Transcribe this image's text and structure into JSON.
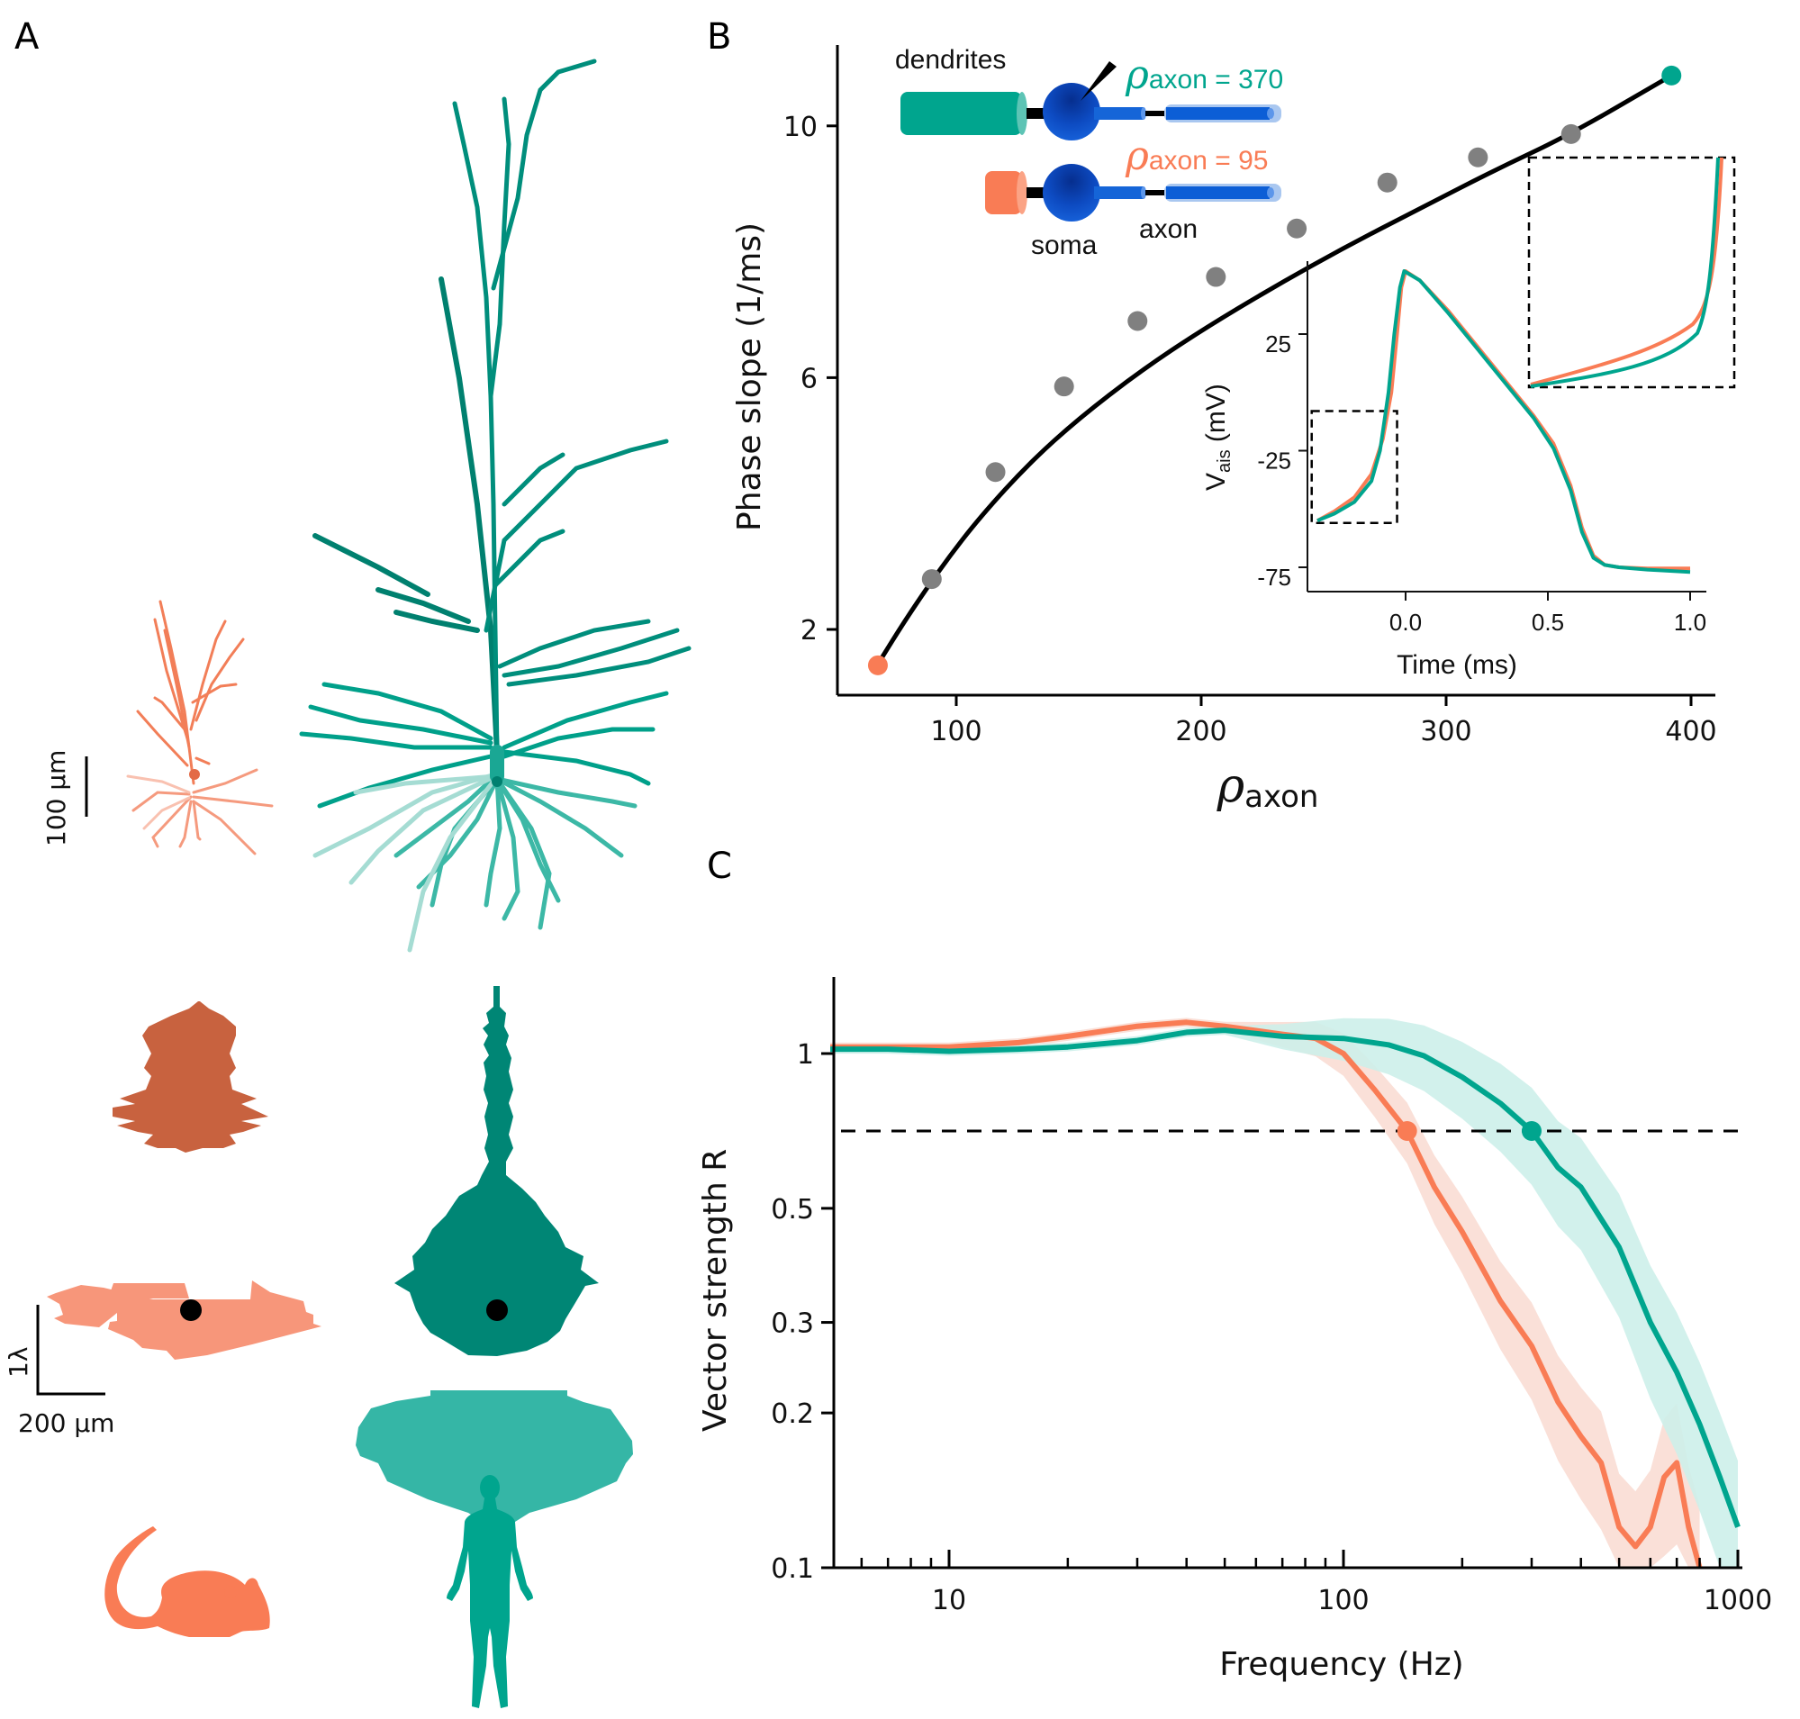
{
  "panels": {
    "A": {
      "label": "A",
      "scalebar_morph": "100 µm",
      "scalebar_lambda": "1λ",
      "scalebar_lambda_x": "200 µm",
      "species": [
        {
          "name": "mouse",
          "icon": "mouse-icon",
          "color": "#F97C55",
          "color_dark": "#C8623F",
          "color_light": "#F7967A"
        },
        {
          "name": "human",
          "icon": "human-icon",
          "color": "#00A58E",
          "color_dark": "#008675",
          "color_light": "#35B6A6"
        }
      ]
    },
    "B": {
      "label": "B",
      "schematic": {
        "dendrites": "dendrites",
        "soma": "soma",
        "axon": "axon",
        "rho_symbol": "ρ",
        "rho_sub": "axon",
        "human_value": " = 370",
        "mouse_value": " = 95"
      },
      "inset": {
        "ylabel_main": "V",
        "ylabel_sub": "ais",
        "ylabel_unit": " (mV)",
        "xlabel": "Time (ms)"
      }
    },
    "C": {
      "label": "C"
    }
  },
  "chart_data": [
    {
      "id": "B-main",
      "type": "scatter",
      "title": "",
      "xlabel_symbol": "ρ",
      "xlabel_sub": "axon",
      "ylabel": "Phase slope (1/ms)",
      "xlim": [
        50,
        410
      ],
      "ylim": [
        1.0,
        11.4
      ],
      "xticks": [
        100,
        200,
        300,
        400
      ],
      "yticks": [
        2,
        6,
        10
      ],
      "points": [
        {
          "x": 68,
          "y": 1.43,
          "color": "#F97C55"
        },
        {
          "x": 90,
          "y": 2.8,
          "color": "#808080"
        },
        {
          "x": 116,
          "y": 4.5,
          "color": "#808080"
        },
        {
          "x": 144,
          "y": 5.86,
          "color": "#808080"
        },
        {
          "x": 174,
          "y": 6.9,
          "color": "#808080"
        },
        {
          "x": 206,
          "y": 7.6,
          "color": "#808080"
        },
        {
          "x": 239,
          "y": 8.37,
          "color": "#808080"
        },
        {
          "x": 276,
          "y": 9.1,
          "color": "#808080"
        },
        {
          "x": 313,
          "y": 9.5,
          "color": "#808080"
        },
        {
          "x": 351,
          "y": 9.87,
          "color": "#808080"
        },
        {
          "x": 392,
          "y": 10.8,
          "color": "#00A58E"
        }
      ],
      "fit": {
        "x": [
          68,
          80,
          95,
          110,
          130,
          150,
          175,
          200,
          230,
          260,
          290,
          320,
          350,
          392
        ],
        "y": [
          1.45,
          2.2,
          3.05,
          3.8,
          4.65,
          5.35,
          6.1,
          6.75,
          7.45,
          8.1,
          8.7,
          9.3,
          9.85,
          10.8
        ]
      },
      "grid": false
    },
    {
      "id": "B-inset",
      "type": "line",
      "xlabel": "Time (ms)",
      "ylabel": "V_ais (mV)",
      "xlim": [
        -0.36,
        1.07
      ],
      "ylim": [
        -81,
        66
      ],
      "xticks": [
        0.0,
        0.5,
        1.0
      ],
      "xtick_labels": [
        "0.0",
        "0.5",
        "1.0"
      ],
      "yticks": [
        25,
        -25,
        -75
      ],
      "series": [
        {
          "name": "mouse",
          "color": "#F97C55",
          "t": [
            -0.31,
            -0.25,
            -0.18,
            -0.12,
            -0.08,
            -0.05,
            -0.03,
            -0.015,
            0.0,
            0.05,
            0.15,
            0.25,
            0.35,
            0.45,
            0.52,
            0.58,
            0.62,
            0.66,
            0.7,
            0.75,
            0.85,
            1.0
          ],
          "v": [
            -55,
            -51,
            -45,
            -35,
            -20,
            0,
            25,
            45,
            52,
            48,
            35,
            20,
            5,
            -10,
            -22,
            -40,
            -58,
            -70,
            -74,
            -75,
            -75.5,
            -75.5
          ]
        },
        {
          "name": "human",
          "color": "#00A58E",
          "t": [
            -0.31,
            -0.25,
            -0.18,
            -0.12,
            -0.09,
            -0.06,
            -0.04,
            -0.02,
            -0.005,
            0.05,
            0.15,
            0.25,
            0.35,
            0.45,
            0.52,
            0.58,
            0.62,
            0.66,
            0.7,
            0.75,
            0.85,
            1.0
          ],
          "v": [
            -55,
            -52,
            -47,
            -38,
            -25,
            0,
            25,
            45,
            52,
            48,
            34,
            19,
            4,
            -11,
            -24,
            -42,
            -60,
            -71,
            -74,
            -75,
            -76,
            -77
          ]
        }
      ],
      "zoom_box_small": {
        "t": [
          -0.33,
          -0.03
        ],
        "v": [
          -56,
          -8
        ]
      },
      "zoom_box_large_note": "magnified view of the spike onset"
    },
    {
      "id": "C",
      "type": "line",
      "xlabel": "Frequency (Hz)",
      "ylabel": "Vector strength R",
      "xscale": "log",
      "yscale": "log",
      "xlim": [
        5,
        1000
      ],
      "ylim": [
        0.1,
        1.3
      ],
      "xticks": [
        10,
        100,
        1000
      ],
      "xtick_labels": [
        "10",
        "100",
        "1000"
      ],
      "yticks": [
        1,
        0.5,
        0.3,
        0.2,
        0.1
      ],
      "ytick_labels": [
        "1",
        "0.5",
        "0.3",
        "0.2",
        "0.1"
      ],
      "threshold": 0.707,
      "series": [
        {
          "name": "mouse",
          "color": "#F97C55",
          "band_color": "#FADDD4",
          "x": [
            5,
            7,
            10,
            15,
            20,
            30,
            40,
            50,
            70,
            85,
            100,
            120,
            145,
            170,
            200,
            250,
            300,
            350,
            400,
            450,
            500,
            550,
            600,
            650,
            700,
            750,
            800
          ],
          "y": [
            1.03,
            1.03,
            1.03,
            1.05,
            1.08,
            1.13,
            1.15,
            1.13,
            1.09,
            1.07,
            1.0,
            0.85,
            0.707,
            0.55,
            0.45,
            0.33,
            0.27,
            0.21,
            0.18,
            0.16,
            0.12,
            0.11,
            0.12,
            0.15,
            0.16,
            0.12,
            0.1
          ],
          "crossing_hz": 145
        },
        {
          "name": "human",
          "color": "#00A58E",
          "band_color": "#CDEFEA",
          "x": [
            5,
            7,
            10,
            15,
            20,
            30,
            40,
            50,
            70,
            100,
            130,
            160,
            200,
            250,
            300,
            350,
            400,
            500,
            600,
            700,
            800,
            900,
            1000
          ],
          "y": [
            1.02,
            1.02,
            1.01,
            1.02,
            1.03,
            1.06,
            1.1,
            1.11,
            1.08,
            1.07,
            1.04,
            0.99,
            0.9,
            0.8,
            0.707,
            0.6,
            0.55,
            0.42,
            0.3,
            0.24,
            0.19,
            0.15,
            0.12
          ],
          "crossing_hz": 300
        }
      ],
      "grid": false
    }
  ]
}
